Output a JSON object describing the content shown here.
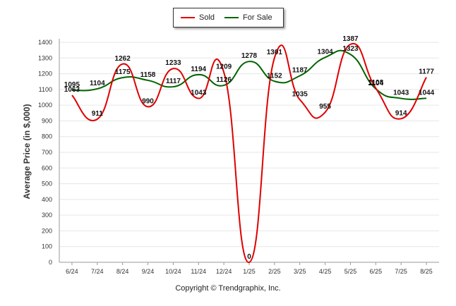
{
  "chart_data": {
    "type": "line",
    "categories": [
      "6/24",
      "7/24",
      "8/24",
      "9/24",
      "10/24",
      "11/24",
      "12/24",
      "1/25",
      "2/25",
      "3/25",
      "4/25",
      "5/25",
      "6/25",
      "7/25",
      "8/25"
    ],
    "series": [
      {
        "name": "Sold",
        "color": "#e00000",
        "values": [
          1063,
          911,
          1262,
          990,
          1233,
          1043,
          1209,
          0,
          1301,
          1035,
          955,
          1387,
          1108,
          914,
          1177
        ]
      },
      {
        "name": "For Sale",
        "color": "#006400",
        "values": [
          1095,
          1104,
          1175,
          1158,
          1117,
          1194,
          1126,
          1278,
          1152,
          1187,
          1304,
          1323,
          1104,
          1043,
          1044
        ]
      }
    ],
    "ylim": [
      0,
      1400
    ],
    "yticks": [
      0,
      100,
      200,
      300,
      400,
      500,
      600,
      700,
      800,
      900,
      1000,
      1100,
      1200,
      1300,
      1400
    ],
    "ylabel": "Average Price (in $,000)",
    "xlabel": "",
    "grid": true,
    "legend_position": "top-center"
  },
  "footer": "Copyright © Trendgraphix, Inc."
}
